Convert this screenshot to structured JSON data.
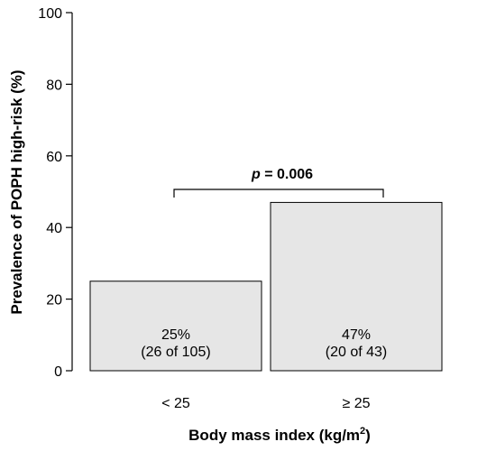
{
  "chart_data": {
    "type": "bar",
    "categories": [
      "< 25",
      "≥ 25"
    ],
    "values": [
      25,
      47
    ],
    "bar_labels": [
      {
        "percent": "25%",
        "count": "(26 of 105)"
      },
      {
        "percent": "47%",
        "count": "(20 of 43)"
      }
    ],
    "xlabel": "Body mass index (kg/m",
    "xlabel_superscript": "2",
    "xlabel_suffix": ")",
    "ylabel": "Prevalence of POPH high-risk (%)",
    "ylim": [
      0,
      100
    ],
    "yticks": [
      0,
      20,
      40,
      60,
      80,
      100
    ],
    "annotation": {
      "p_symbol": "p",
      "p_text": " = 0.006",
      "between": [
        0,
        1
      ]
    },
    "bar_color": "#e6e6e6",
    "grid": false,
    "legend": "none"
  }
}
